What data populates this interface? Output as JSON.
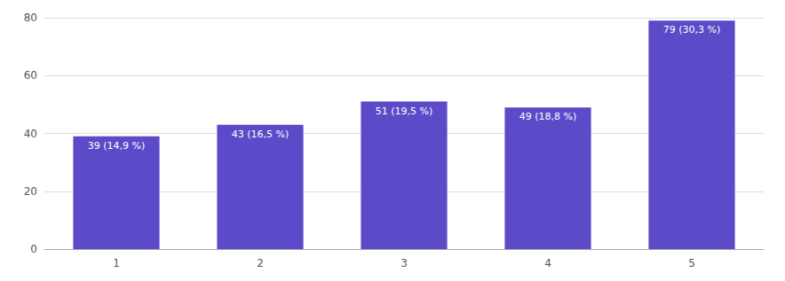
{
  "chart_data": {
    "type": "bar",
    "categories": [
      "1",
      "2",
      "3",
      "4",
      "5"
    ],
    "values": [
      39,
      43,
      51,
      49,
      79
    ],
    "value_labels": [
      "39 (14,9 %)",
      "43 (16,5 %)",
      "51 (19,5 %)",
      "49 (18,8 %)",
      "79 (30,3 %)"
    ],
    "color": "#5b4bc8",
    "ylim": [
      0,
      80
    ],
    "yticks": [
      0,
      20,
      40,
      60,
      80
    ],
    "grid": true,
    "data_labels": true
  }
}
